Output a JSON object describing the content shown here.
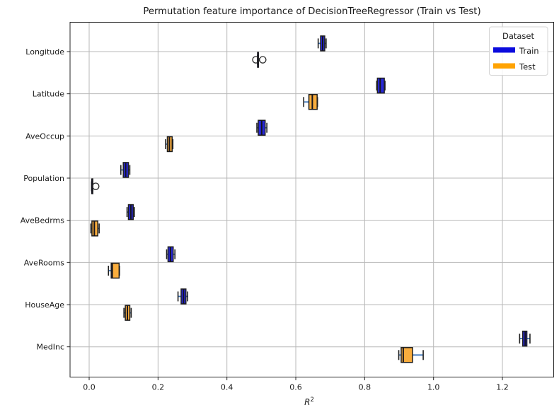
{
  "title": "Permutation feature importance of DecisionTreeRegressor (Train vs Test)",
  "legend": {
    "title": "Dataset",
    "entries": [
      {
        "label": "Train",
        "color": "#0b0bdd"
      },
      {
        "label": "Test",
        "color": "#ffa303"
      }
    ]
  },
  "chart_data": {
    "type": "boxplot-horizontal",
    "title": "Permutation feature importance of DecisionTreeRegressor (Train vs Test)",
    "xlabel": "R^2",
    "xlabel_base": "R",
    "xlabel_sup": "2",
    "ylabel": "",
    "grid": true,
    "legend_position": "upper right",
    "xlim": [
      -0.0555,
      1.3489
    ],
    "xticks": [
      0.0,
      0.2,
      0.4,
      0.6,
      0.8,
      1.0,
      1.2
    ],
    "categories": [
      "Longitude",
      "Latitude",
      "AveOccup",
      "Population",
      "AveBedrms",
      "AveRooms",
      "HouseAge",
      "MedInc"
    ],
    "colors": {
      "train_box": "#2727d8",
      "test_box": "#f9ad3d",
      "box_edge": "#1f1f1f",
      "whisker": "#3a73b9",
      "cap": "#1f1f1f",
      "median": "#15151f",
      "flier_edge": "#262626",
      "grid": "#b8b8b8",
      "spine": "#262626",
      "text": "#1a1a1a"
    },
    "series": [
      {
        "name": "Train",
        "fill": "#2727d8",
        "boxes": [
          {
            "feature": "Longitude",
            "whislo": 0.665,
            "q1": 0.672,
            "med": 0.678,
            "q3": 0.684,
            "whishi": 0.688,
            "fliers": []
          },
          {
            "feature": "Latitude",
            "whislo": 0.835,
            "q1": 0.837,
            "med": 0.845,
            "q3": 0.857,
            "whishi": 0.859,
            "fliers": []
          },
          {
            "feature": "AveOccup",
            "whislo": 0.487,
            "q1": 0.491,
            "med": 0.501,
            "q3": 0.511,
            "whishi": 0.516,
            "fliers": []
          },
          {
            "feature": "Population",
            "whislo": 0.092,
            "q1": 0.099,
            "med": 0.106,
            "q3": 0.114,
            "whishi": 0.118,
            "fliers": []
          },
          {
            "feature": "AveBedrms",
            "whislo": 0.11,
            "q1": 0.114,
            "med": 0.121,
            "q3": 0.128,
            "whishi": 0.131,
            "fliers": []
          },
          {
            "feature": "AveRooms",
            "whislo": 0.225,
            "q1": 0.229,
            "med": 0.236,
            "q3": 0.244,
            "whishi": 0.249,
            "fliers": []
          },
          {
            "feature": "HouseAge",
            "whislo": 0.258,
            "q1": 0.267,
            "med": 0.274,
            "q3": 0.281,
            "whishi": 0.286,
            "fliers": []
          },
          {
            "feature": "MedInc",
            "whislo": 1.25,
            "q1": 1.259,
            "med": 1.266,
            "q3": 1.271,
            "whishi": 1.28,
            "fliers": []
          }
        ]
      },
      {
        "name": "Test",
        "fill": "#f9ad3d",
        "boxes": [
          {
            "feature": "Longitude",
            "whislo": 0.489,
            "q1": 0.489,
            "med": 0.49,
            "q3": 0.491,
            "whishi": 0.491,
            "fliers": [
              0.484,
              0.504
            ]
          },
          {
            "feature": "Latitude",
            "whislo": 0.623,
            "q1": 0.638,
            "med": 0.648,
            "q3": 0.662,
            "whishi": 0.663,
            "fliers": []
          },
          {
            "feature": "AveOccup",
            "whislo": 0.222,
            "q1": 0.227,
            "med": 0.233,
            "q3": 0.241,
            "whishi": 0.243,
            "fliers": []
          },
          {
            "feature": "Population",
            "whislo": 0.007,
            "q1": 0.008,
            "med": 0.008,
            "q3": 0.009,
            "whishi": 0.01,
            "fliers": [
              0.019
            ]
          },
          {
            "feature": "AveBedrms",
            "whislo": 0.005,
            "q1": 0.008,
            "med": 0.015,
            "q3": 0.025,
            "whishi": 0.029,
            "fliers": []
          },
          {
            "feature": "AveRooms",
            "whislo": 0.056,
            "q1": 0.064,
            "med": 0.067,
            "q3": 0.087,
            "whishi": 0.088,
            "fliers": []
          },
          {
            "feature": "HouseAge",
            "whislo": 0.101,
            "q1": 0.105,
            "med": 0.111,
            "q3": 0.118,
            "whishi": 0.122,
            "fliers": []
          },
          {
            "feature": "MedInc",
            "whislo": 0.899,
            "q1": 0.906,
            "med": 0.912,
            "q3": 0.939,
            "whishi": 0.97,
            "fliers": []
          }
        ]
      }
    ]
  }
}
